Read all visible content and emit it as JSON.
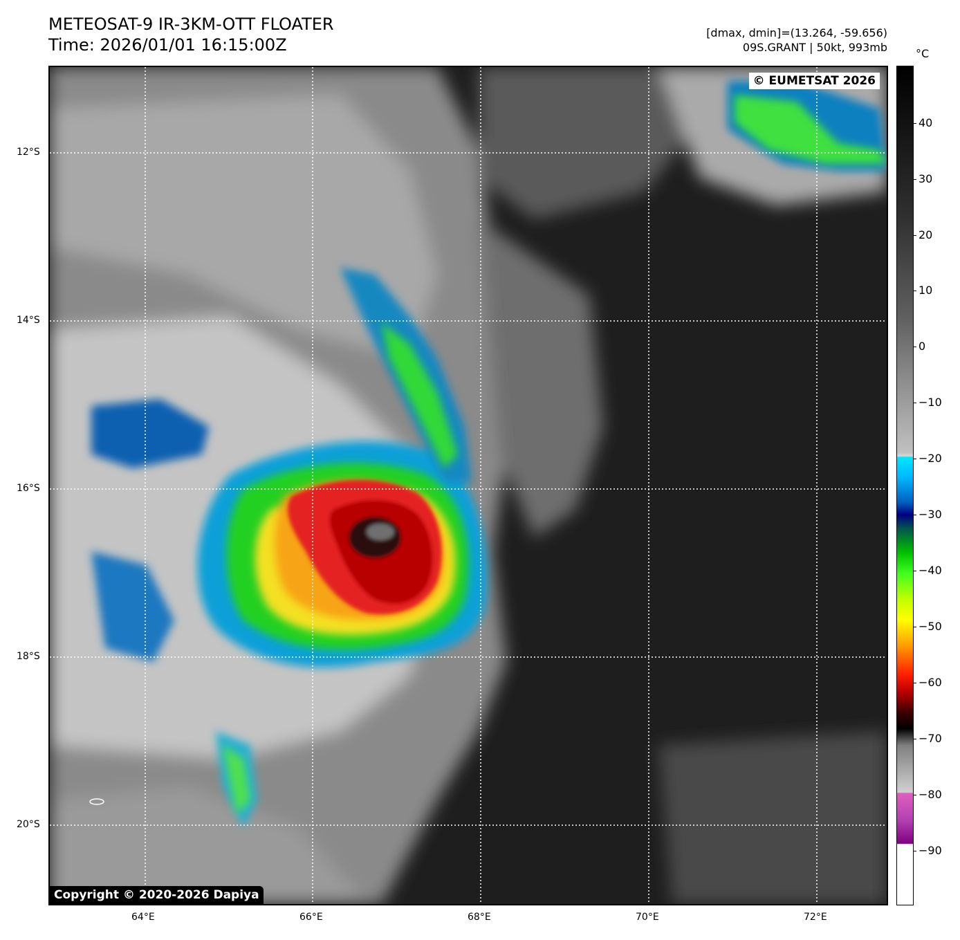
{
  "title": {
    "line1": "METEOSAT-9 IR-3KM-OTT FLOATER",
    "line2": "Time: 2026/01/01 16:15:00Z"
  },
  "meta": {
    "line1": "[dmax, dmin]=(13.264, -59.656)",
    "line2": "09S.GRANT | 50kt, 993mb"
  },
  "credits": {
    "agency": "© EUMETSAT 2026",
    "copyright": "Copyright © 2020-2026 Dapiya"
  },
  "map": {
    "lat_labels": [
      "12°S",
      "14°S",
      "16°S",
      "18°S",
      "20°S"
    ],
    "lon_labels": [
      "64°E",
      "66°E",
      "68°E",
      "70°E",
      "72°E"
    ],
    "storm": "09S.GRANT"
  },
  "colorbar": {
    "unit": "°C",
    "ticks": [
      "40",
      "30",
      "20",
      "10",
      "0",
      "−10",
      "−20",
      "−30",
      "−40",
      "−50",
      "−60",
      "−70",
      "−80",
      "−90"
    ]
  }
}
